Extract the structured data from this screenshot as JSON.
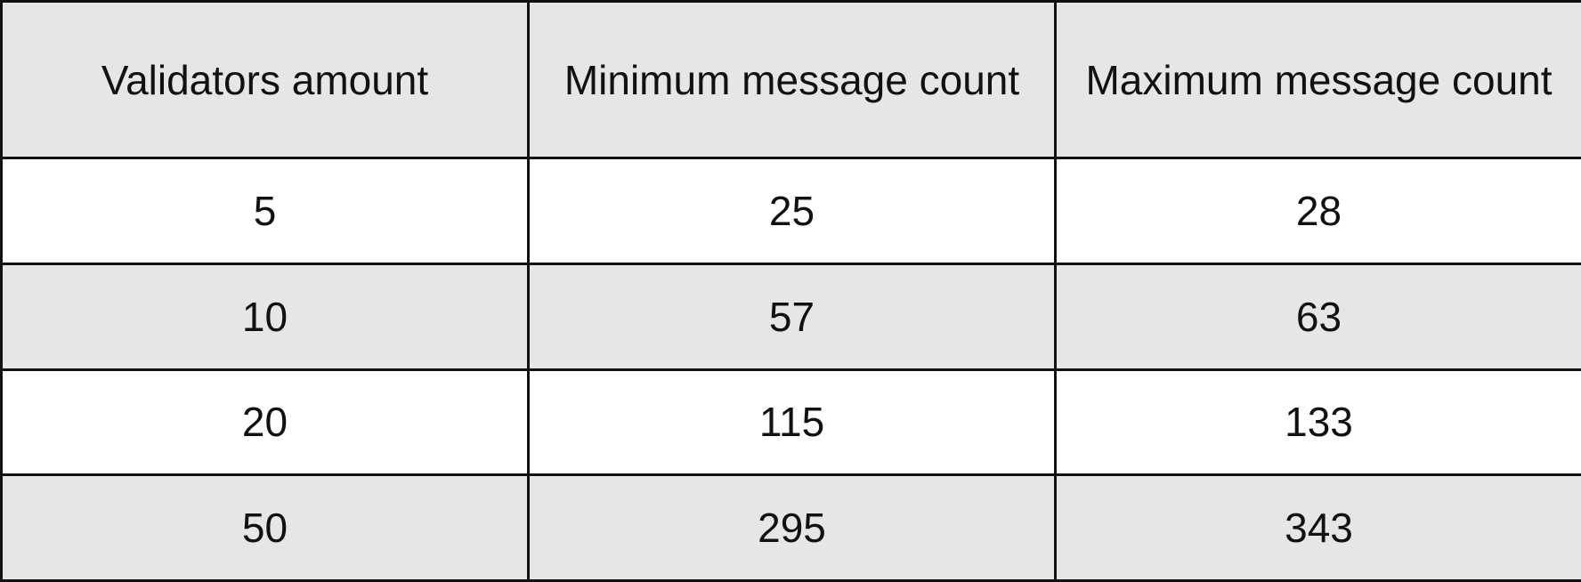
{
  "table": {
    "headers": [
      "Validators amount",
      "Minimum message count",
      "Maximum message count"
    ],
    "rows": [
      [
        "5",
        "25",
        "28"
      ],
      [
        "10",
        "57",
        "63"
      ],
      [
        "20",
        "115",
        "133"
      ],
      [
        "50",
        "295",
        "343"
      ]
    ]
  },
  "colors": {
    "header_bg": "#e5e6e5",
    "row_alt_bg": "#e5e6e5",
    "row_bg": "#ffffff",
    "border": "#111111"
  }
}
